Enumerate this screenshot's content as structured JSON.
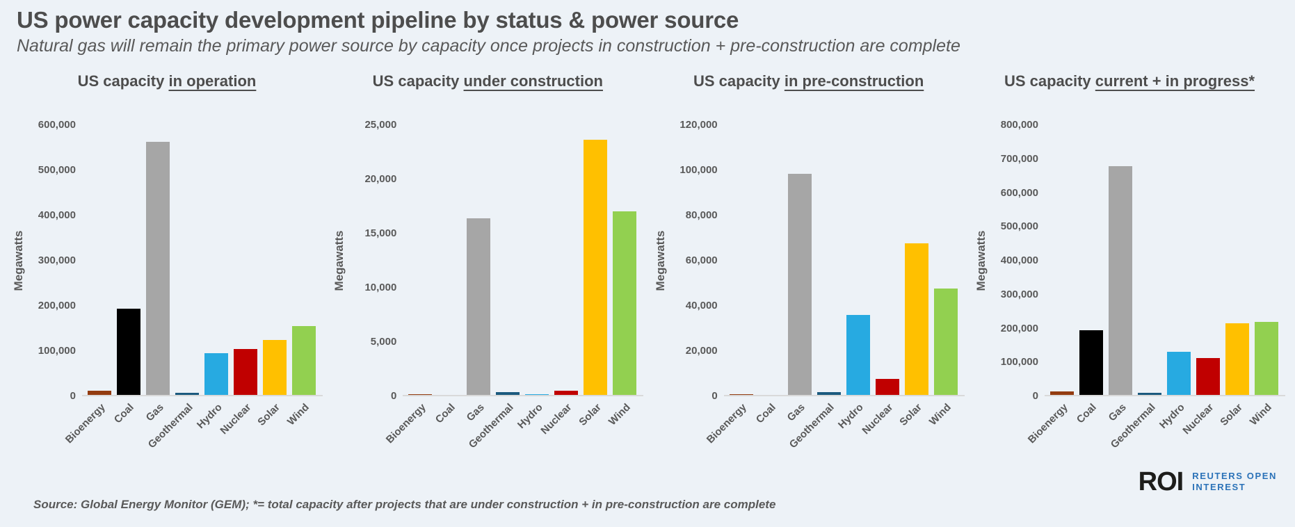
{
  "header": {
    "title": "US power capacity development pipeline by status & power source",
    "subtitle": "Natural gas will remain the primary power source by capacity once projects in construction + pre-construction are complete"
  },
  "footer": {
    "source": "Source: Global Energy Monitor (GEM); *= total capacity after projects that are under construction + in pre-construction are complete",
    "logo": {
      "abbr": "ROI",
      "name_line1": "REUTERS OPEN",
      "name_line2": "INTEREST"
    }
  },
  "colors": {
    "background": "#edf2f7",
    "heading_text": "#4d4d4d",
    "body_text": "#595959",
    "axis_line": "#d9d9d9",
    "logo_abbr": "#1d1d1b",
    "logo_name": "#2b72b8",
    "bars": {
      "Bioenergy": "#933c10",
      "Coal": "#000000",
      "Gas": "#a6a6a6",
      "Geothermal": "#1b5a7e",
      "Hydro": "#27aae1",
      "Nuclear": "#c00000",
      "Solar": "#ffc000",
      "Wind": "#92d050"
    }
  },
  "chart_data": [
    {
      "type": "bar",
      "title_prefix": "US capacity",
      "title_status": "in operation",
      "ylabel": "Megawatts",
      "categories": [
        "Bioenergy",
        "Coal",
        "Gas",
        "Geothermal",
        "Hydro",
        "Nuclear",
        "Solar",
        "Wind"
      ],
      "values": [
        9500,
        191000,
        560000,
        4000,
        92000,
        102000,
        121000,
        152000
      ],
      "ylim": [
        0,
        600000
      ],
      "ytick_step": 100000,
      "grid": false,
      "legend": "none"
    },
    {
      "type": "bar",
      "title_prefix": "US capacity",
      "title_status": "under construction",
      "ylabel": "Megawatts",
      "categories": [
        "Bioenergy",
        "Coal",
        "Gas",
        "Geothermal",
        "Hydro",
        "Nuclear",
        "Solar",
        "Wind"
      ],
      "values": [
        60,
        0,
        16300,
        260,
        80,
        400,
        23500,
        16900
      ],
      "ylim": [
        0,
        25000
      ],
      "ytick_step": 5000,
      "grid": false,
      "legend": "none"
    },
    {
      "type": "bar",
      "title_prefix": "US capacity",
      "title_status": "in pre-construction",
      "ylabel": "Megawatts",
      "categories": [
        "Bioenergy",
        "Coal",
        "Gas",
        "Geothermal",
        "Hydro",
        "Nuclear",
        "Solar",
        "Wind"
      ],
      "values": [
        300,
        0,
        98000,
        1200,
        35500,
        7000,
        67000,
        47000
      ],
      "ylim": [
        0,
        120000
      ],
      "ytick_step": 20000,
      "grid": false,
      "legend": "none"
    },
    {
      "type": "bar",
      "title_prefix": "US capacity",
      "title_status": "current + in progress*",
      "ylabel": "Megawatts",
      "categories": [
        "Bioenergy",
        "Coal",
        "Gas",
        "Geothermal",
        "Hydro",
        "Nuclear",
        "Solar",
        "Wind"
      ],
      "values": [
        9800,
        191000,
        675000,
        5400,
        127500,
        109500,
        211000,
        216000
      ],
      "ylim": [
        0,
        800000
      ],
      "ytick_step": 100000,
      "grid": false,
      "legend": "none"
    }
  ]
}
